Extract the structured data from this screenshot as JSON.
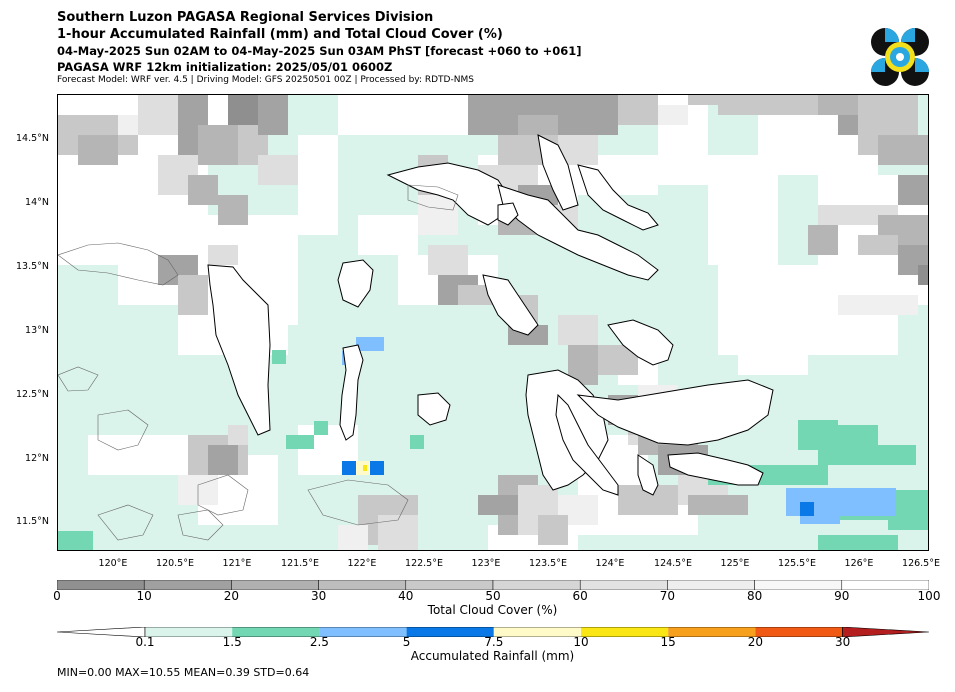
{
  "header": {
    "title1": "Southern Luzon PAGASA Regional Services Division",
    "title2": "1-hour Accumulated Rainfall (mm) and Total Cloud Cover (%)",
    "title3": "04-May-2025 Sun 02AM to 04-May-2025 Sun 03AM PhST [forecast +060 to +061]",
    "title4": "PAGASA WRF 12km initialization: 2025/05/01 0600Z",
    "title5": "Forecast Model: WRF ver. 4.5 | Driving Model: GFS 20250501 00Z | Processed by: RDTD-NMS"
  },
  "map": {
    "lat_labels": [
      "14.5°N",
      "14°N",
      "13.5°N",
      "13°N",
      "12.5°N",
      "12°N",
      "11.5°N"
    ],
    "lon_labels": [
      "120°E",
      "120.5°E",
      "121°E",
      "121.5°E",
      "122°E",
      "122.5°E",
      "123°E",
      "123.5°E",
      "124°E",
      "124.5°E",
      "125°E",
      "125.5°E",
      "126°E",
      "126.5°E"
    ],
    "colors": {
      "land_border": "#000000",
      "cloud_light": "#daf3eb"
    }
  },
  "cloud_colorbar": {
    "label": "Total Cloud Cover (%)",
    "ticks": [
      "0",
      "10",
      "20",
      "30",
      "40",
      "50",
      "60",
      "70",
      "80",
      "90",
      "100"
    ],
    "colors": [
      "#909090",
      "#a0a0a0",
      "#b0b0b0",
      "#bdbdbd",
      "#c9c9c9",
      "#d6d6d6",
      "#e2e2e2",
      "#eeeeee",
      "#f7f7f7",
      "#ffffff"
    ]
  },
  "rain_colorbar": {
    "label": "Accumulated Rainfall (mm)",
    "ticks": [
      "0.1",
      "1.5",
      "2.5",
      "5",
      "7.5",
      "10",
      "15",
      "20",
      "30"
    ],
    "colors": [
      "#daf3eb",
      "#73d7b4",
      "#7fbfff",
      "#0a78e6",
      "#fffac8",
      "#fae614",
      "#f7a01e",
      "#f05a14",
      "#b41e1e"
    ]
  },
  "stats": {
    "text": "MIN=0.00   MAX=10.55   MEAN=0.39   STD=0.64"
  }
}
